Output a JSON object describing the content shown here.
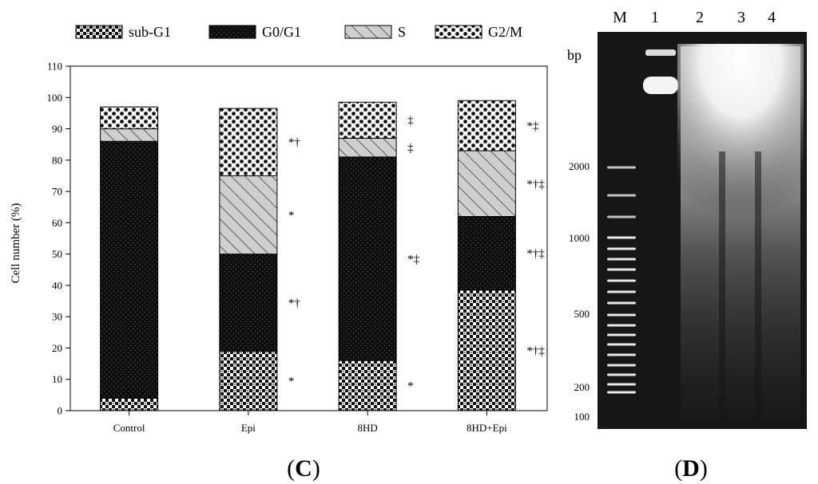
{
  "chart_data": [
    {
      "type": "bar",
      "stacked": true,
      "panel_label": "C",
      "title": "",
      "xlabel": "",
      "ylabel": "Cell number (%)",
      "ylim": [
        0,
        110
      ],
      "yticks": [
        0,
        10,
        20,
        30,
        40,
        50,
        60,
        70,
        80,
        90,
        100,
        110
      ],
      "grid": false,
      "legend_position": "top",
      "categories": [
        "Control",
        "Epi",
        "8HD",
        "8HD+Epi"
      ],
      "series": [
        {
          "name": "sub-G1",
          "values": [
            4,
            19,
            16,
            38.5
          ],
          "pattern": "checker",
          "annotations": [
            "",
            "*",
            "*",
            "*†‡"
          ]
        },
        {
          "name": "G0/G1",
          "values": [
            82,
            31,
            65,
            23.5
          ],
          "pattern": "dark-dotted",
          "annotations": [
            "",
            "*†",
            "*‡",
            "*†‡"
          ]
        },
        {
          "name": "S",
          "values": [
            4,
            25,
            6,
            21
          ],
          "pattern": "hatch",
          "annotations": [
            "",
            "*",
            "‡",
            "*†‡"
          ]
        },
        {
          "name": "G2/M",
          "values": [
            7,
            21.5,
            11.5,
            16
          ],
          "pattern": "dots",
          "annotations": [
            "",
            "*†",
            "‡",
            "*‡"
          ]
        }
      ]
    },
    {
      "type": "gel",
      "panel_label": "D",
      "lane_labels": [
        "M",
        "1",
        "2",
        "3",
        "4"
      ],
      "size_unit": "bp",
      "marker_labels": [
        "2000",
        "1000",
        "500",
        "200",
        "100"
      ]
    }
  ],
  "colors": {
    "bar_fill": "#111111",
    "bar_stroke": "#000000",
    "gel_bg": "#151515",
    "dna_band": "#ffffff"
  }
}
